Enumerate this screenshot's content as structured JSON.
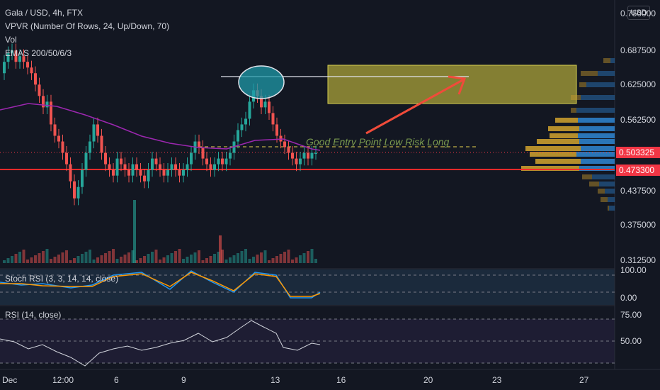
{
  "header": {
    "symbol": "Gala / USD, 4h, FTX",
    "indicator_1": "VPVR (Number Of Rows, 24, Up/Down, 70)",
    "indicator_2": "Vol",
    "indicator_3": "EMAS 200/50/6/3"
  },
  "currency_button": "USD",
  "annotation": "Good Entry Point Low Risk Long",
  "price_axis": {
    "labels": [
      "0.750000",
      "0.687500",
      "0.625000",
      "0.562500",
      "0.437500",
      "0.375000",
      "0.312500"
    ],
    "current_price": "0.503325",
    "support_price": "0.473300",
    "colors": {
      "current": "#f23645",
      "support": "#f23645"
    }
  },
  "stoch_rsi": {
    "title": "Stoch RSI (3, 3, 14, 14, close)",
    "axis": [
      "100.00",
      "0.00"
    ]
  },
  "rsi": {
    "title": "RSI (14, close)",
    "axis": [
      "75.00",
      "50.00"
    ]
  },
  "time_axis": [
    "Dec",
    "12:00",
    "6",
    "9",
    "13",
    "16",
    "20",
    "23",
    "27"
  ],
  "colors": {
    "up": "#26a69a",
    "down": "#ef5350",
    "ema": "#9c27b0",
    "support_line": "#ff2a2a",
    "target_zone": "#b5ad3a",
    "vp_up": "#2d7fc9",
    "vp_down": "#c89b2e"
  }
}
